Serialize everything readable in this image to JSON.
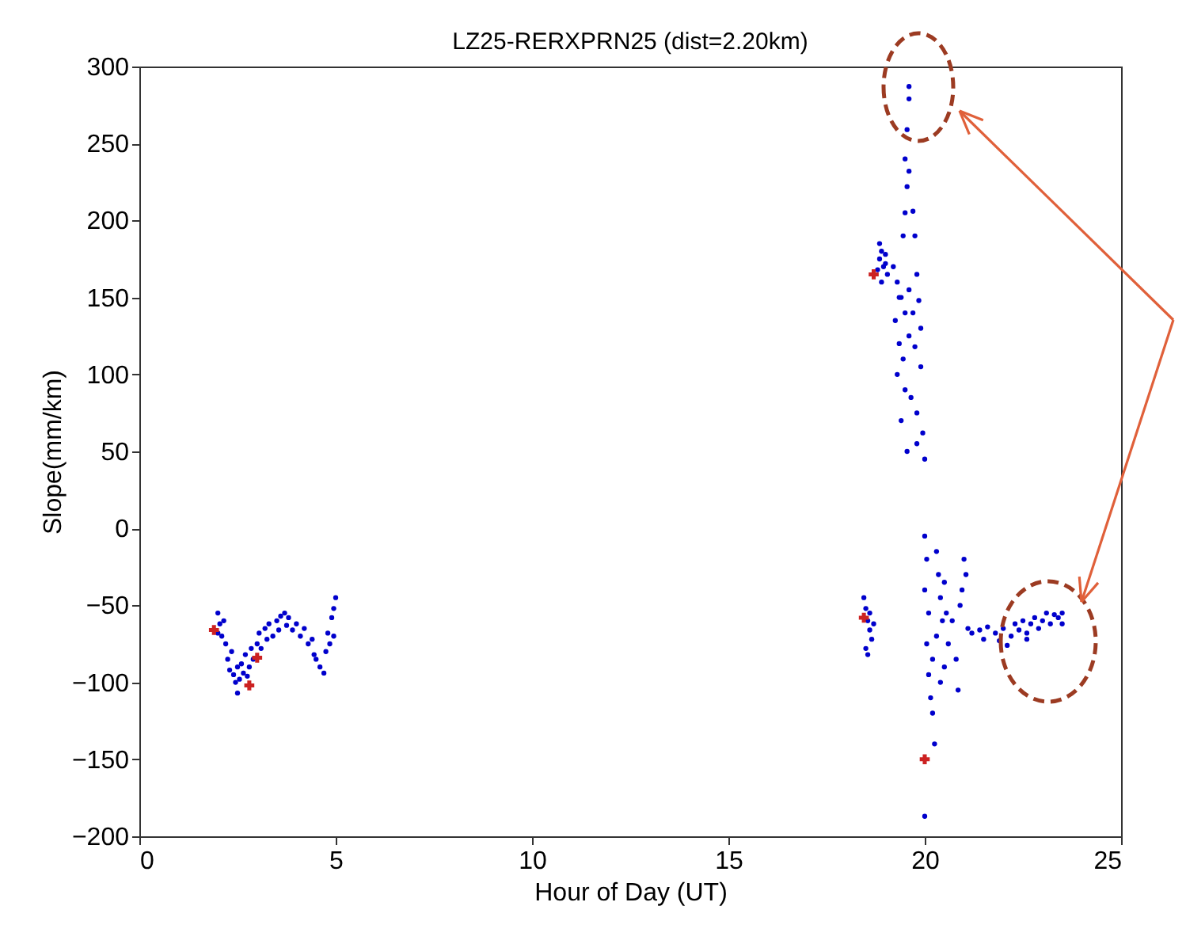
{
  "chart_data": {
    "type": "scatter",
    "title": "LZ25-RERXPRN25 (dist=2.20km)",
    "xlabel": "Hour of Day (UT)",
    "ylabel": "Slope(mm/km)",
    "xlim": [
      0,
      25
    ],
    "xticks": [
      0,
      5,
      10,
      15,
      20,
      25
    ],
    "ylim": [
      -200,
      300
    ],
    "yticks": [
      -200,
      -150,
      -100,
      -50,
      0,
      50,
      100,
      150,
      200,
      250,
      300
    ],
    "grid": false,
    "series": [
      {
        "color": "#0000cc",
        "marker": "circle",
        "x": [
          2.0,
          2.05,
          2.1,
          2.0,
          2.15,
          2.2,
          2.25,
          2.3,
          2.35,
          2.4,
          2.45,
          2.5,
          2.5,
          2.55,
          2.6,
          2.65,
          2.7,
          2.75,
          2.8,
          2.85,
          2.9,
          3.0,
          3.05,
          3.1,
          3.2,
          3.25,
          3.3,
          3.4,
          3.5,
          3.55,
          3.6,
          3.7,
          3.75,
          3.8,
          3.9,
          4.0,
          4.1,
          4.2,
          4.3,
          4.4,
          4.45,
          4.5,
          4.6,
          4.7,
          4.75,
          4.8,
          4.85,
          4.9,
          4.95,
          5.0,
          4.95,
          18.45,
          18.5,
          18.55,
          18.6,
          18.65,
          18.5,
          18.7,
          18.55,
          18.6,
          18.8,
          18.85,
          18.9,
          18.95,
          19.0,
          19.05,
          18.9,
          19.0,
          18.85,
          19.6,
          19.6,
          19.55,
          19.5,
          19.6,
          19.55,
          19.5,
          19.7,
          19.75,
          19.45,
          19.2,
          19.3,
          19.4,
          19.5,
          19.6,
          19.8,
          19.85,
          19.25,
          19.35,
          19.45,
          19.6,
          19.75,
          19.9,
          19.3,
          19.5,
          19.65,
          19.8,
          19.95,
          19.4,
          19.55,
          19.8,
          20.0,
          19.35,
          19.7,
          19.9,
          20.0,
          20.05,
          20.0,
          20.1,
          20.05,
          20.1,
          20.15,
          20.2,
          20.2,
          20.0,
          20.3,
          20.35,
          20.4,
          20.3,
          20.45,
          20.5,
          20.55,
          20.6,
          20.5,
          20.7,
          20.8,
          20.9,
          20.95,
          20.85,
          21.0,
          21.05,
          21.1,
          20.4,
          20.25,
          21.2,
          21.4,
          21.5,
          21.6,
          21.8,
          21.9,
          22.0,
          22.2,
          22.3,
          22.4,
          22.5,
          22.6,
          22.7,
          22.8,
          22.9,
          23.0,
          23.1,
          23.2,
          23.3,
          23.4,
          23.5,
          23.5,
          22.1,
          22.6
        ],
        "values": [
          -55,
          -62,
          -70,
          -68,
          -60,
          -75,
          -85,
          -92,
          -80,
          -95,
          -100,
          -107,
          -90,
          -98,
          -88,
          -94,
          -82,
          -96,
          -90,
          -78,
          -85,
          -75,
          -68,
          -78,
          -65,
          -72,
          -62,
          -70,
          -60,
          -66,
          -57,
          -55,
          -63,
          -58,
          -66,
          -62,
          -70,
          -65,
          -75,
          -72,
          -82,
          -85,
          -90,
          -94,
          -80,
          -68,
          -75,
          -58,
          -52,
          -45,
          -70,
          -45,
          -52,
          -60,
          -66,
          -72,
          -78,
          -62,
          -82,
          -55,
          168,
          175,
          180,
          170,
          178,
          165,
          160,
          172,
          185,
          287,
          279,
          259,
          240,
          232,
          222,
          205,
          206,
          190,
          190,
          170,
          160,
          150,
          140,
          155,
          165,
          148,
          135,
          120,
          110,
          125,
          118,
          105,
          100,
          90,
          85,
          75,
          62,
          70,
          50,
          55,
          45,
          150,
          140,
          130,
          -5,
          -20,
          -40,
          -55,
          -75,
          -95,
          -110,
          -85,
          -120,
          -187,
          -15,
          -30,
          -45,
          -70,
          -60,
          -35,
          -55,
          -75,
          -90,
          -60,
          -85,
          -50,
          -40,
          -105,
          -20,
          -30,
          -65,
          -100,
          -140,
          -68,
          -66,
          -72,
          -64,
          -68,
          -73,
          -65,
          -70,
          -62,
          -66,
          -60,
          -68,
          -62,
          -58,
          -65,
          -60,
          -55,
          -62,
          -56,
          -58,
          -55,
          -62,
          -76,
          -72
        ]
      },
      {
        "color": "#cc2222",
        "marker": "cross",
        "x": [
          1.9,
          2.8,
          3.0,
          18.45,
          18.7,
          20.0
        ],
        "values": [
          -66,
          -102,
          -84,
          -58,
          165,
          -150
        ]
      }
    ]
  }
}
